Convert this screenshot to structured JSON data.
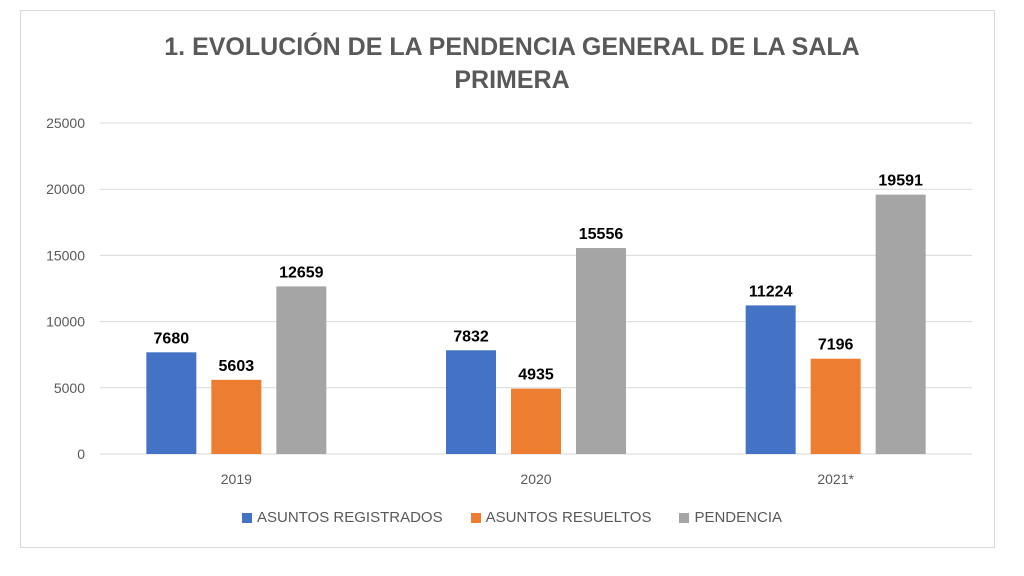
{
  "chart_data": {
    "type": "bar",
    "title_lines": [
      "1. EVOLUCIÓN DE LA PENDENCIA GENERAL DE LA SALA",
      "PRIMERA"
    ],
    "categories": [
      "2019",
      "2020",
      "2021*"
    ],
    "series": [
      {
        "name": "ASUNTOS REGISTRADOS",
        "color": "#4472c4",
        "values": [
          7680,
          7832,
          11224
        ]
      },
      {
        "name": "ASUNTOS RESUELTOS",
        "color": "#ed7d31",
        "values": [
          5603,
          4935,
          7196
        ]
      },
      {
        "name": "PENDENCIA",
        "color": "#a5a5a5",
        "values": [
          12659,
          15556,
          19591
        ]
      }
    ],
    "yticks": [
      0,
      5000,
      10000,
      15000,
      20000,
      25000
    ],
    "ylim": [
      0,
      25000
    ],
    "grid": true,
    "data_labels": true,
    "legend": "bottom"
  }
}
